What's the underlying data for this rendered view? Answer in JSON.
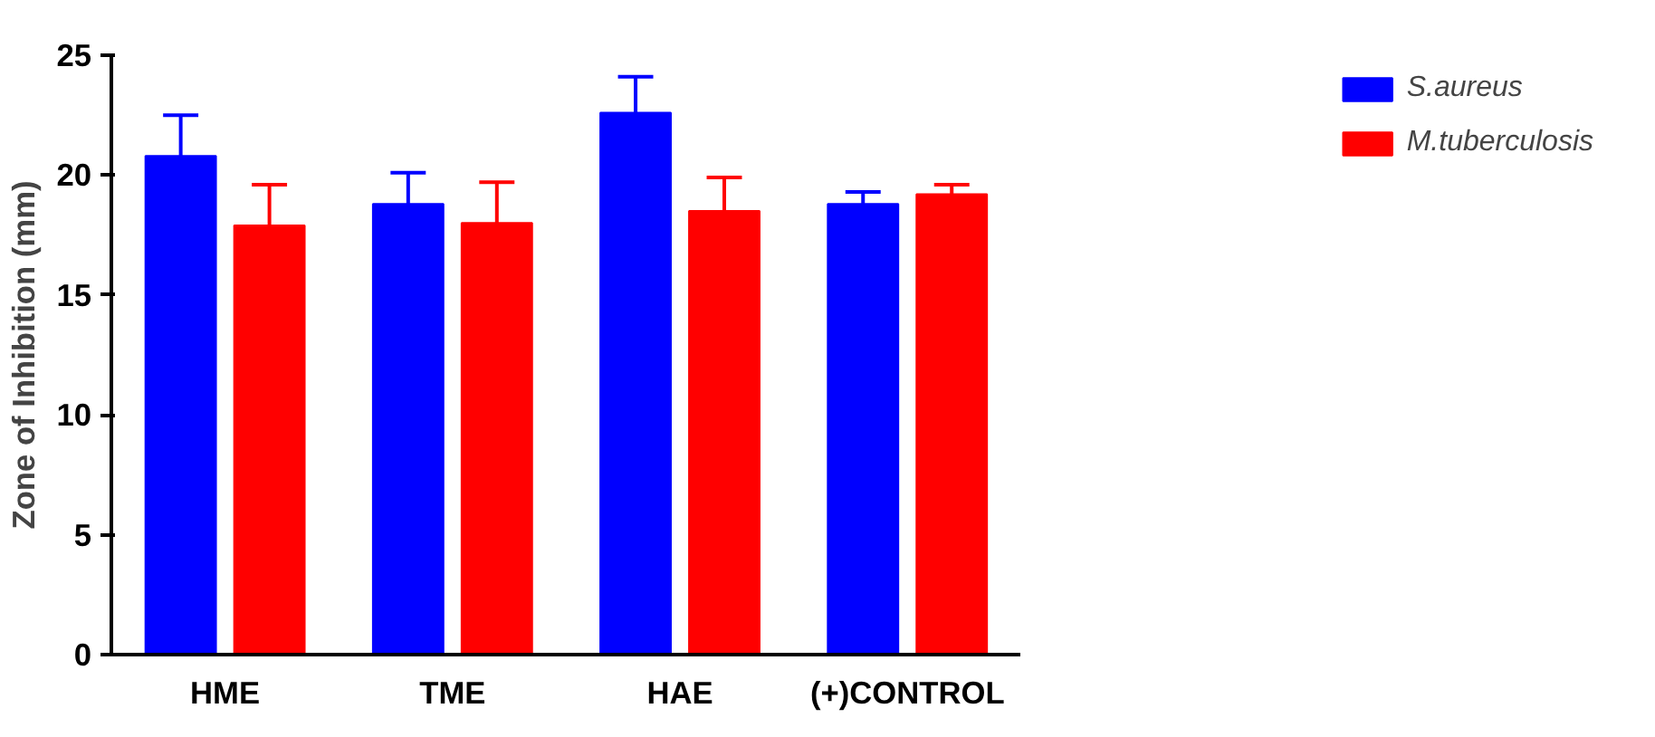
{
  "chart_data": {
    "type": "bar",
    "ylabel": "Zone of Inhibition (mm)",
    "categories": [
      "HME",
      "TME",
      "HAE",
      "(+)CONTROL"
    ],
    "series": [
      {
        "name": "S.aureus",
        "color": "#0000ff",
        "values": [
          20.8,
          18.8,
          22.6,
          18.8
        ],
        "errors": [
          [
            20.8,
            22.5
          ],
          [
            18.8,
            20.1
          ],
          [
            22.6,
            24.1
          ],
          [
            18.8,
            19.3
          ]
        ]
      },
      {
        "name": "M.tuberculosis",
        "color": "#ff0000",
        "values": [
          17.9,
          18.0,
          18.5,
          19.2
        ],
        "errors": [
          [
            17.9,
            19.6
          ],
          [
            18.0,
            19.7
          ],
          [
            18.5,
            19.9
          ],
          [
            19.2,
            19.6
          ]
        ]
      }
    ],
    "ylim": [
      0,
      25
    ],
    "yticks": [
      0,
      5,
      10,
      15,
      20,
      25
    ],
    "grid": false,
    "legend": "right"
  }
}
